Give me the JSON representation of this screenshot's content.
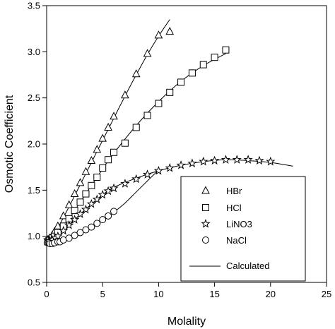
{
  "chart_data": {
    "type": "scatter",
    "xlabel": "Molality",
    "ylabel": "Osmotic Coefficient",
    "xlim": [
      0,
      25
    ],
    "ylim": [
      0.5,
      3.5
    ],
    "xticks": [
      "0",
      "5",
      "10",
      "15",
      "20",
      "25"
    ],
    "yticks": [
      "0.5",
      "1.0",
      "1.5",
      "2.0",
      "2.5",
      "3.0",
      "3.5"
    ],
    "legend_position": "lower-right",
    "series": [
      {
        "name": "HBr",
        "marker": "triangle",
        "x": [
          0.1,
          0.2,
          0.3,
          0.5,
          0.7,
          1.0,
          1.5,
          2.0,
          2.5,
          3.0,
          3.5,
          4.0,
          4.5,
          5.0,
          5.5,
          6.0,
          7.0,
          8.0,
          9.0,
          10.0,
          11.0
        ],
        "y": [
          0.96,
          0.97,
          0.98,
          1.01,
          1.05,
          1.11,
          1.22,
          1.34,
          1.46,
          1.58,
          1.7,
          1.82,
          1.94,
          2.06,
          2.18,
          2.3,
          2.53,
          2.76,
          2.98,
          3.18,
          3.22
        ]
      },
      {
        "name": "HCl",
        "marker": "square",
        "x": [
          0.1,
          0.2,
          0.3,
          0.5,
          0.7,
          1.0,
          1.5,
          2.0,
          2.5,
          3.0,
          3.5,
          4.0,
          4.5,
          5.0,
          5.5,
          6.0,
          7.0,
          8.0,
          9.0,
          10.0,
          11.0,
          12.0,
          13.0,
          14.0,
          15.0,
          16.0
        ],
        "y": [
          0.94,
          0.95,
          0.96,
          0.98,
          1.0,
          1.04,
          1.11,
          1.19,
          1.28,
          1.37,
          1.46,
          1.55,
          1.64,
          1.74,
          1.83,
          1.91,
          2.01,
          2.18,
          2.31,
          2.44,
          2.56,
          2.67,
          2.77,
          2.86,
          2.94,
          3.02
        ]
      },
      {
        "name": "LiNO3",
        "marker": "star",
        "x": [
          0.1,
          0.3,
          0.5,
          0.8,
          1.0,
          1.5,
          2.0,
          2.5,
          3.0,
          3.5,
          4.0,
          4.5,
          5.0,
          5.5,
          6.0,
          7.0,
          8.0,
          9.0,
          10.0,
          11.0,
          12.0,
          13.0,
          14.0,
          15.0,
          16.0,
          17.0,
          18.0,
          19.0,
          20.0
        ],
        "y": [
          0.96,
          0.95,
          0.96,
          0.98,
          1.0,
          1.06,
          1.12,
          1.18,
          1.24,
          1.29,
          1.35,
          1.4,
          1.45,
          1.49,
          1.52,
          1.57,
          1.62,
          1.67,
          1.71,
          1.74,
          1.77,
          1.79,
          1.81,
          1.82,
          1.83,
          1.83,
          1.83,
          1.82,
          1.81
        ]
      },
      {
        "name": "NaCl",
        "marker": "circle",
        "x": [
          0.1,
          0.2,
          0.3,
          0.5,
          0.7,
          1.0,
          1.2,
          1.5,
          2.0,
          2.5,
          3.0,
          3.5,
          4.0,
          4.5,
          5.0,
          5.5,
          6.0
        ],
        "y": [
          0.93,
          0.93,
          0.92,
          0.92,
          0.93,
          0.94,
          0.94,
          0.96,
          0.98,
          1.01,
          1.04,
          1.07,
          1.1,
          1.14,
          1.18,
          1.22,
          1.27
        ]
      }
    ],
    "calculated_lines": [
      {
        "name": "Calculated",
        "for": "HBr",
        "x": [
          0.05,
          0.5,
          1.0,
          2.0,
          3.0,
          4.0,
          5.0,
          6.0,
          7.0,
          8.0,
          9.0,
          10.0,
          11.0
        ],
        "y": [
          0.94,
          1.0,
          1.09,
          1.32,
          1.56,
          1.8,
          2.04,
          2.28,
          2.52,
          2.75,
          2.97,
          3.17,
          3.35
        ]
      },
      {
        "name": "Calculated",
        "for": "HCl",
        "x": [
          0.05,
          0.5,
          1.0,
          2.0,
          3.0,
          4.0,
          5.0,
          6.0,
          8.0,
          10.0,
          12.0,
          14.0,
          16.0
        ],
        "y": [
          0.93,
          0.97,
          1.03,
          1.19,
          1.37,
          1.55,
          1.73,
          1.9,
          2.2,
          2.46,
          2.68,
          2.85,
          2.98
        ]
      },
      {
        "name": "Calculated",
        "for": "LiNO3",
        "x": [
          0.05,
          0.5,
          1.0,
          2.0,
          3.0,
          4.0,
          5.0,
          6.0,
          8.0,
          10.0,
          12.0,
          14.0,
          16.0,
          18.0,
          20.0,
          22.0
        ],
        "y": [
          0.95,
          0.96,
          1.0,
          1.12,
          1.24,
          1.35,
          1.45,
          1.53,
          1.63,
          1.71,
          1.77,
          1.81,
          1.83,
          1.82,
          1.8,
          1.76
        ]
      },
      {
        "name": "Calculated",
        "for": "NaCl",
        "x": [
          0.05,
          0.5,
          1.0,
          2.0,
          3.0,
          4.0,
          5.0,
          6.0,
          7.0,
          8.0,
          9.0,
          10.0
        ],
        "y": [
          0.93,
          0.92,
          0.93,
          0.97,
          1.03,
          1.09,
          1.17,
          1.26,
          1.36,
          1.48,
          1.6,
          1.72
        ]
      }
    ],
    "legend": [
      "HBr",
      "HCl",
      "LiNO3",
      "NaCl",
      "Calculated"
    ]
  }
}
